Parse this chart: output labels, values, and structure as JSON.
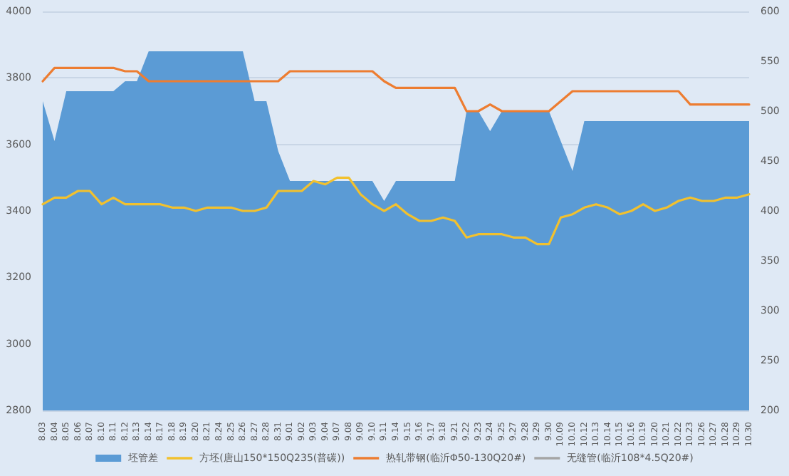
{
  "chart_data": {
    "type": "line",
    "categories": [
      "8.03",
      "8.04",
      "8.05",
      "8.06",
      "8.07",
      "8.10",
      "8.11",
      "8.12",
      "8.13",
      "8.14",
      "8.17",
      "8.18",
      "8.19",
      "8.20",
      "8.21",
      "8.24",
      "8.25",
      "8.26",
      "8.27",
      "8.28",
      "8.31",
      "9.01",
      "9.02",
      "9.03",
      "9.04",
      "9.07",
      "9.08",
      "9.09",
      "9.10",
      "9.11",
      "9.14",
      "9.15",
      "9.16",
      "9.17",
      "9.18",
      "9.21",
      "9.22",
      "9.23",
      "9.24",
      "9.25",
      "9.27",
      "9.28",
      "9.29",
      "9.30",
      "10.09",
      "10.10",
      "10.12",
      "10.13",
      "10.14",
      "10.15",
      "10.16",
      "10.19",
      "10.20",
      "10.21",
      "10.22",
      "10.23",
      "10.26",
      "10.27",
      "10.28",
      "10.29",
      "10.30"
    ],
    "series": [
      {
        "name": "坯管差",
        "type": "area",
        "axis": "y2",
        "color": "#5b9bd5",
        "values": [
          510,
          470,
          520,
          520,
          520,
          520,
          520,
          530,
          530,
          560,
          560,
          560,
          560,
          560,
          560,
          560,
          560,
          560,
          510,
          510,
          460,
          430,
          430,
          430,
          430,
          430,
          430,
          430,
          430,
          410,
          430,
          430,
          430,
          430,
          430,
          430,
          500,
          500,
          480,
          500,
          500,
          500,
          500,
          500,
          470,
          440,
          490,
          490,
          490,
          490,
          490,
          490,
          490,
          490,
          490,
          490,
          490,
          490,
          490,
          490,
          490
        ]
      },
      {
        "name": "方坯(唐山150*150Q235(普碳))",
        "color": "#f2c12e",
        "values": [
          3420,
          3440,
          3440,
          3460,
          3460,
          3420,
          3440,
          3420,
          3420,
          3420,
          3420,
          3410,
          3410,
          3400,
          3410,
          3410,
          3410,
          3400,
          3400,
          3410,
          3460,
          3460,
          3460,
          3490,
          3480,
          3500,
          3500,
          3450,
          3420,
          3400,
          3420,
          3390,
          3370,
          3370,
          3380,
          3370,
          3320,
          3330,
          3330,
          3330,
          3320,
          3320,
          3300,
          3300,
          3380,
          3390,
          3410,
          3420,
          3410,
          3390,
          3400,
          3420,
          3400,
          3410,
          3430,
          3440,
          3430,
          3430,
          3440,
          3440,
          3450
        ]
      },
      {
        "name": "热轧带钢(临沂Φ50-130Q20#)",
        "color": "#ed7d31",
        "values": [
          3790,
          3830,
          3830,
          3830,
          3830,
          3830,
          3830,
          3820,
          3820,
          3790,
          3790,
          3790,
          3790,
          3790,
          3790,
          3790,
          3790,
          3790,
          3790,
          3790,
          3790,
          3820,
          3820,
          3820,
          3820,
          3820,
          3820,
          3820,
          3820,
          3790,
          3770,
          3770,
          3770,
          3770,
          3770,
          3770,
          3700,
          3700,
          3720,
          3700,
          3700,
          3700,
          3700,
          3700,
          3730,
          3760,
          3760,
          3760,
          3760,
          3760,
          3760,
          3760,
          3760,
          3760,
          3760,
          3720,
          3720,
          3720,
          3720,
          3720,
          3720
        ]
      },
      {
        "name": "无缝管(临沂108*4.5Q20#)",
        "color": "#a5a5a5",
        "values": [
          null,
          null,
          null,
          null,
          null,
          null,
          null,
          null,
          null,
          null,
          null,
          null,
          null,
          null,
          null,
          null,
          null,
          null,
          null,
          null,
          null,
          null,
          null,
          null,
          null,
          null,
          null,
          null,
          null,
          null,
          null,
          null,
          null,
          null,
          null,
          null,
          null,
          null,
          null,
          null,
          null,
          null,
          null,
          null,
          null,
          null,
          null,
          null,
          null,
          null,
          null,
          null,
          null,
          null,
          null,
          null,
          null,
          null,
          null,
          null,
          null
        ]
      }
    ],
    "ylim": [
      2800,
      4000
    ],
    "yticks": [
      2800,
      3000,
      3200,
      3400,
      3600,
      3800,
      4000
    ],
    "y2lim": [
      200,
      600
    ],
    "y2ticks": [
      200,
      250,
      300,
      350,
      400,
      450,
      500,
      550,
      600
    ],
    "grid": "y",
    "legend": "bottom",
    "marker": "none",
    "line_style": "solid"
  }
}
